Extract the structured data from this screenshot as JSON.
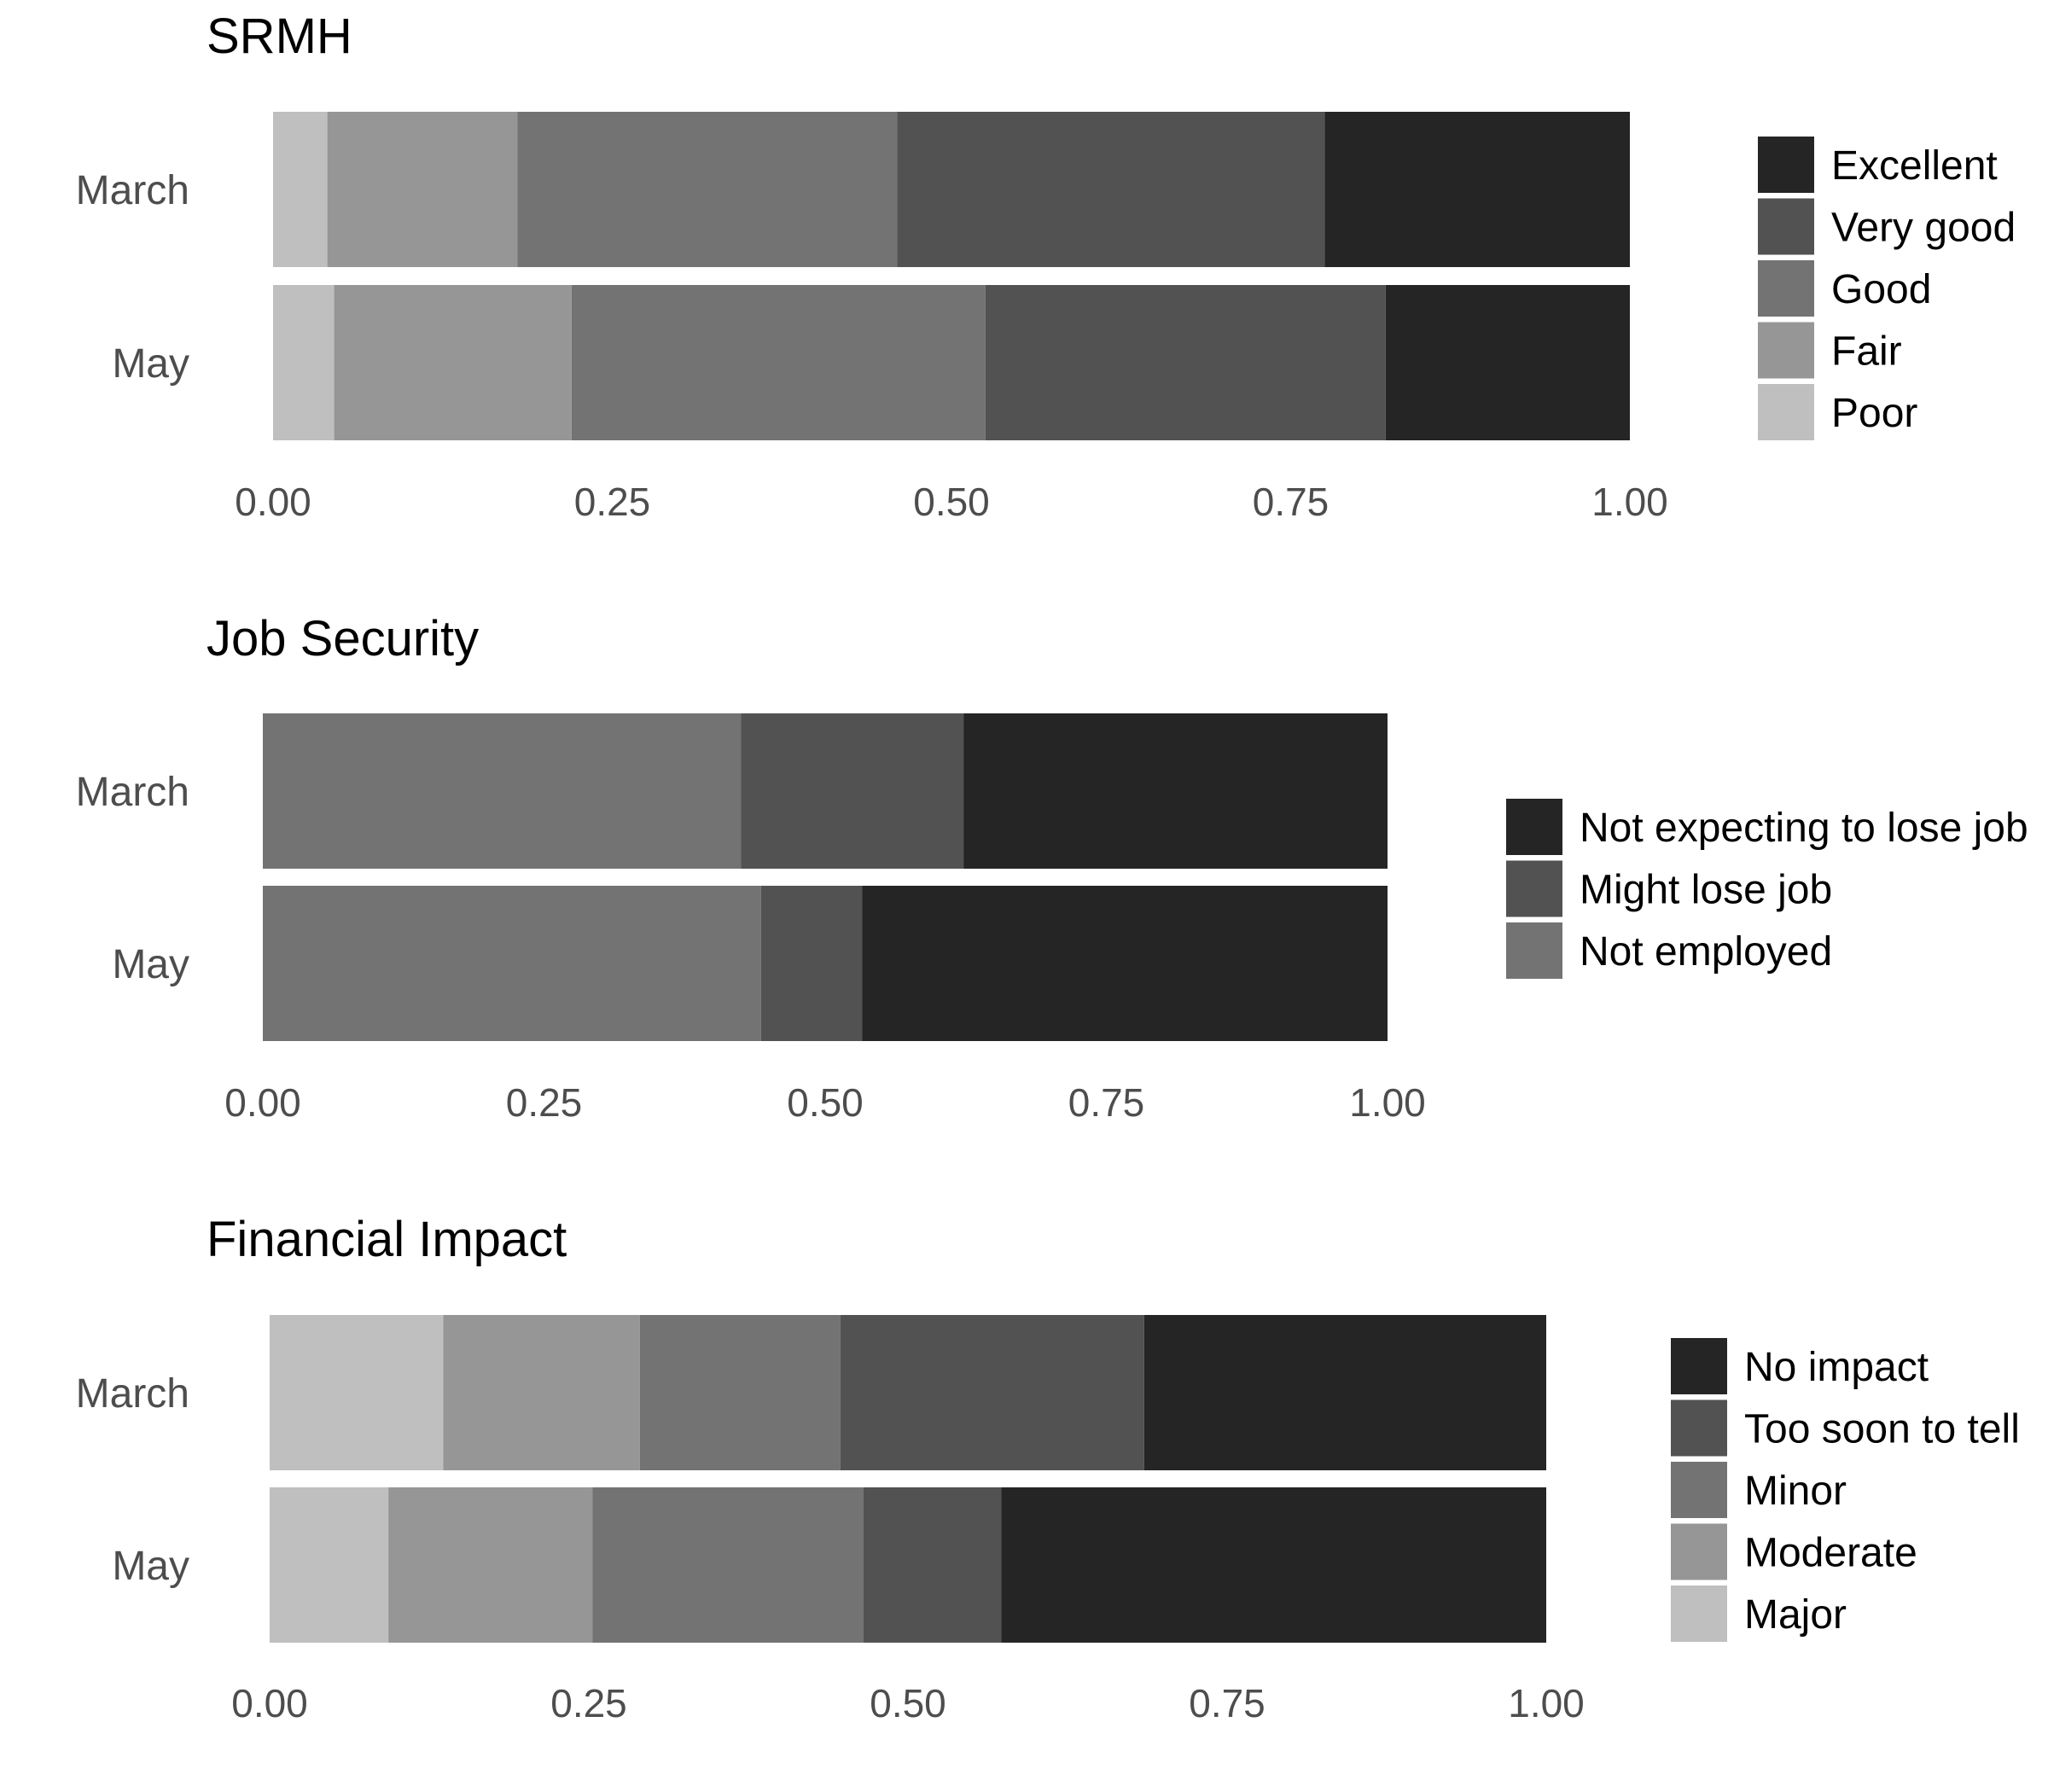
{
  "chart_data": [
    {
      "type": "bar",
      "orientation": "horizontal",
      "stacked": true,
      "title": "SRMH",
      "categories": [
        "March",
        "May"
      ],
      "xlim": [
        0,
        1
      ],
      "xticks": [
        "0.00",
        "0.25",
        "0.50",
        "0.75",
        "1.00"
      ],
      "legend_position": "right",
      "series": [
        {
          "name": "Poor",
          "color": "#bfbfbf",
          "values": [
            0.04,
            0.045
          ]
        },
        {
          "name": "Fair",
          "color": "#969696",
          "values": [
            0.14,
            0.175
          ]
        },
        {
          "name": "Good",
          "color": "#737373",
          "values": [
            0.28,
            0.305
          ]
        },
        {
          "name": "Very good",
          "color": "#525252",
          "values": [
            0.315,
            0.295
          ]
        },
        {
          "name": "Excellent",
          "color": "#252525",
          "values": [
            0.225,
            0.18
          ]
        }
      ],
      "legend_order": [
        "Excellent",
        "Very good",
        "Good",
        "Fair",
        "Poor"
      ]
    },
    {
      "type": "bar",
      "orientation": "horizontal",
      "stacked": true,
      "title": "Job Security",
      "categories": [
        "March",
        "May"
      ],
      "xlim": [
        0,
        1
      ],
      "xticks": [
        "0.00",
        "0.25",
        "0.50",
        "0.75",
        "1.00"
      ],
      "legend_position": "right",
      "series": [
        {
          "name": "Not employed",
          "color": "#737373",
          "values": [
            0.425,
            0.443
          ]
        },
        {
          "name": "Might lose job",
          "color": "#525252",
          "values": [
            0.198,
            0.09
          ]
        },
        {
          "name": "Not expecting to lose job",
          "color": "#252525",
          "values": [
            0.377,
            0.467
          ]
        }
      ],
      "legend_order": [
        "Not expecting to lose job",
        "Might lose job",
        "Not employed"
      ]
    },
    {
      "type": "bar",
      "orientation": "horizontal",
      "stacked": true,
      "title": "Financial Impact",
      "categories": [
        "March",
        "May"
      ],
      "xlim": [
        0,
        1
      ],
      "xticks": [
        "0.00",
        "0.25",
        "0.50",
        "0.75",
        "1.00"
      ],
      "legend_position": "right",
      "series": [
        {
          "name": "Major",
          "color": "#bfbfbf",
          "values": [
            0.136,
            0.093
          ]
        },
        {
          "name": "Moderate",
          "color": "#969696",
          "values": [
            0.154,
            0.16
          ]
        },
        {
          "name": "Minor",
          "color": "#737373",
          "values": [
            0.157,
            0.212
          ]
        },
        {
          "name": "Too soon to tell",
          "color": "#525252",
          "values": [
            0.238,
            0.108
          ]
        },
        {
          "name": "No impact",
          "color": "#252525",
          "values": [
            0.315,
            0.427
          ]
        }
      ],
      "legend_order": [
        "No impact",
        "Too soon to tell",
        "Minor",
        "Moderate",
        "Major"
      ]
    }
  ]
}
